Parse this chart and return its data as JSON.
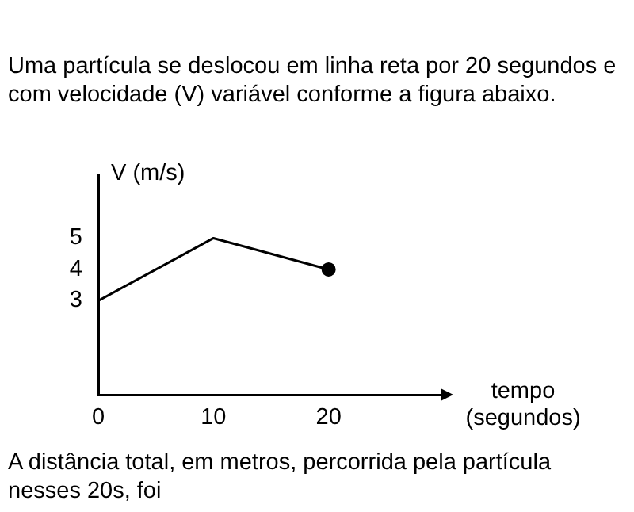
{
  "chart_data": {
    "type": "line",
    "title": "Uma partícula se deslocou em linha reta por 20 segundos e com velocidade (V) variável conforme a figura abaixo.",
    "xlabel": "tempo (segundos)",
    "ylabel": "V (m/s)",
    "x": [
      0,
      10,
      20
    ],
    "series": [
      {
        "color": "#000000",
        "marker": "none",
        "values": [
          3,
          5,
          4
        ]
      },
      {
        "type": "scatter",
        "color": "#000000",
        "marker": "circle",
        "x": [
          20
        ],
        "values": [
          4
        ]
      }
    ],
    "xlim": [
      0,
      30
    ],
    "xticks": [
      0,
      10,
      20
    ],
    "ylim": [
      0,
      7
    ],
    "yticks": [
      3,
      4,
      5
    ],
    "grid": false,
    "legend": false,
    "line_style": "solid",
    "annotations": [
      "A distância total, em metros, percorrida pela partícula nesses 20s, foi"
    ]
  }
}
